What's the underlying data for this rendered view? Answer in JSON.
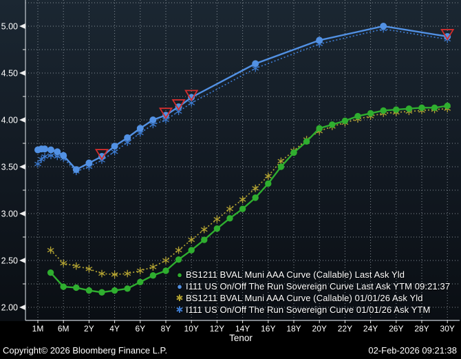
{
  "chart_data": {
    "type": "line",
    "title": "",
    "xlabel": "Tenor",
    "ylabel": "",
    "x_axis": {
      "tick_labels": [
        "1M",
        "6M",
        "2Y",
        "4Y",
        "6Y",
        "8Y",
        "10Y",
        "12Y",
        "14Y",
        "16Y",
        "18Y",
        "20Y",
        "22Y",
        "24Y",
        "26Y",
        "28Y",
        "30Y"
      ]
    },
    "y_axis": {
      "major_tick_labels": [
        "5.00",
        "4.50",
        "4.00",
        "3.50",
        "3.00",
        "2.50",
        "2.00"
      ],
      "major_step": 0.5,
      "minor_step": 0.25,
      "shown_range": [
        1.86,
        5.28
      ]
    },
    "grid": {
      "style": "dotted",
      "horizontal_step": 0.25,
      "vertical": "at each labeled tenor",
      "color": "#9BA4AC"
    },
    "legend_position": "inside-bottom-right",
    "series": [
      {
        "id": "muni-last",
        "z": 3,
        "name": "BS1211 BVAL Muni AAA Curve (Callable) Last Ask Yld",
        "color": "#2FAE2F",
        "line": "solid",
        "marker": "circle",
        "points": [
          [
            "3M",
            0.5,
            2.37
          ],
          [
            "6M",
            1,
            2.22
          ],
          [
            "1Y",
            1.5,
            2.21
          ],
          [
            "2Y",
            2,
            2.18
          ],
          [
            "3Y",
            2.5,
            2.16
          ],
          [
            "4Y",
            3,
            2.18
          ],
          [
            "5Y",
            3.5,
            2.2
          ],
          [
            "6Y",
            4,
            2.27
          ],
          [
            "7Y",
            4.5,
            2.34
          ],
          [
            "8Y",
            5,
            2.39
          ],
          [
            "9Y",
            5.5,
            2.51
          ],
          [
            "10Y",
            6,
            2.61
          ],
          [
            "11Y",
            6.5,
            2.72
          ],
          [
            "12Y",
            7,
            2.84
          ],
          [
            "13Y",
            7.5,
            2.95
          ],
          [
            "14Y",
            8,
            3.05
          ],
          [
            "15Y",
            8.5,
            3.17
          ],
          [
            "16Y",
            9,
            3.32
          ],
          [
            "17Y",
            9.5,
            3.5
          ],
          [
            "18Y",
            10,
            3.65
          ],
          [
            "19Y",
            10.5,
            3.77
          ],
          [
            "20Y",
            11,
            3.91
          ],
          [
            "21Y",
            11.5,
            3.95
          ],
          [
            "22Y",
            12,
            3.99
          ],
          [
            "23Y",
            12.5,
            4.04
          ],
          [
            "24Y",
            13,
            4.07
          ],
          [
            "25Y",
            13.5,
            4.1
          ],
          [
            "26Y",
            14,
            4.11
          ],
          [
            "27Y",
            14.5,
            4.12
          ],
          [
            "28Y",
            15,
            4.13
          ],
          [
            "29Y",
            15.5,
            4.13
          ],
          [
            "30Y",
            16,
            4.15
          ]
        ]
      },
      {
        "id": "sovereign-last",
        "z": 4,
        "name": "I111 US On/Off The Run Sovereign Curve Last Ask YTM 09:21:37",
        "color": "#5291E4",
        "line": "solid",
        "marker": "circle",
        "points": [
          [
            "1M",
            0,
            3.68
          ],
          [
            "2M",
            0.14,
            3.69
          ],
          [
            "3M",
            0.27,
            3.69
          ],
          [
            "4M",
            0.51,
            3.68
          ],
          [
            "5M",
            0.76,
            3.66
          ],
          [
            "6M",
            1,
            3.62
          ],
          [
            "1Y",
            1.5,
            3.47
          ],
          [
            "2Y",
            2,
            3.54
          ],
          [
            "3Y",
            2.5,
            3.61
          ],
          [
            "4Y",
            3,
            3.72
          ],
          [
            "5Y",
            3.5,
            3.81
          ],
          [
            "6Y",
            4,
            3.91
          ],
          [
            "7Y",
            4.5,
            4.0
          ],
          [
            "8Y",
            5,
            4.05
          ],
          [
            "9Y",
            5.5,
            4.14
          ],
          [
            "10Y",
            6,
            4.24
          ],
          [
            "15Y",
            8.5,
            4.6
          ],
          [
            "20Y",
            11,
            4.85
          ],
          [
            "25Y",
            13.5,
            5.0
          ],
          [
            "30Y",
            16,
            4.89
          ]
        ]
      },
      {
        "id": "muni-prior",
        "z": 1,
        "name": "BS1211 BVAL Muni AAA Curve (Callable) 01/01/26 Ask Yld",
        "color": "#B4A433",
        "line": "dotted",
        "marker": "asterisk",
        "points": [
          [
            "3M",
            0.5,
            2.61
          ],
          [
            "6M",
            1,
            2.47
          ],
          [
            "1Y",
            1.5,
            2.44
          ],
          [
            "2Y",
            2,
            2.41
          ],
          [
            "3Y",
            2.5,
            2.36
          ],
          [
            "4Y",
            3,
            2.35
          ],
          [
            "5Y",
            3.5,
            2.36
          ],
          [
            "6Y",
            4,
            2.39
          ],
          [
            "7Y",
            4.5,
            2.43
          ],
          [
            "8Y",
            5,
            2.5
          ],
          [
            "9Y",
            5.5,
            2.61
          ],
          [
            "10Y",
            6,
            2.72
          ],
          [
            "11Y",
            6.5,
            2.83
          ],
          [
            "12Y",
            7,
            2.94
          ],
          [
            "13Y",
            7.5,
            3.05
          ],
          [
            "14Y",
            8,
            3.15
          ],
          [
            "15Y",
            8.5,
            3.27
          ],
          [
            "16Y",
            9,
            3.4
          ],
          [
            "17Y",
            9.5,
            3.56
          ],
          [
            "18Y",
            10,
            3.67
          ],
          [
            "19Y",
            10.5,
            3.79
          ],
          [
            "20Y",
            11,
            3.88
          ],
          [
            "21Y",
            11.5,
            3.93
          ],
          [
            "22Y",
            12,
            3.97
          ],
          [
            "23Y",
            12.5,
            4.01
          ],
          [
            "24Y",
            13,
            4.04
          ],
          [
            "25Y",
            13.5,
            4.07
          ],
          [
            "26Y",
            14,
            4.08
          ],
          [
            "27Y",
            14.5,
            4.09
          ],
          [
            "28Y",
            15,
            4.1
          ],
          [
            "29Y",
            15.5,
            4.11
          ],
          [
            "30Y",
            16,
            4.12
          ]
        ]
      },
      {
        "id": "sovereign-prior",
        "z": 2,
        "name": "I111 US On/Off The Run Sovereign Curve 01/01/26 Ask YTM",
        "color": "#3D7BD0",
        "line": "dotted",
        "marker": "asterisk",
        "points": [
          [
            "1M",
            0,
            3.53
          ],
          [
            "2M",
            0.14,
            3.58
          ],
          [
            "3M",
            0.27,
            3.61
          ],
          [
            "4M",
            0.51,
            3.62
          ],
          [
            "5M",
            0.76,
            3.61
          ],
          [
            "6M",
            1,
            3.59
          ],
          [
            "1Y",
            1.5,
            3.45
          ],
          [
            "2Y",
            2,
            3.5
          ],
          [
            "3Y",
            2.5,
            3.57
          ],
          [
            "4Y",
            3,
            3.66
          ],
          [
            "5Y",
            3.5,
            3.76
          ],
          [
            "6Y",
            4,
            3.86
          ],
          [
            "7Y",
            4.5,
            3.95
          ],
          [
            "8Y",
            5,
            4.0
          ],
          [
            "9Y",
            5.5,
            4.09
          ],
          [
            "10Y",
            6,
            4.18
          ],
          [
            "15Y",
            8.5,
            4.55
          ],
          [
            "20Y",
            11,
            4.81
          ],
          [
            "25Y",
            13.5,
            4.97
          ],
          [
            "30Y",
            16,
            4.86
          ]
        ]
      }
    ],
    "annotations": {
      "red_triangle_markers": {
        "color": "#D22E2E",
        "on_series": "sovereign-last",
        "tenors": [
          "3Y",
          "8Y",
          "9Y",
          "10Y",
          "30Y"
        ]
      }
    }
  },
  "legend": {
    "items": [
      {
        "label": "BS1211 BVAL Muni AAA Curve (Callable) Last Ask Yld",
        "glyph": "●",
        "color": "#2FAE2F"
      },
      {
        "label": "I111 US On/Off The Run Sovereign Curve Last Ask YTM 09:21:37",
        "glyph": "●",
        "color": "#5291E4"
      },
      {
        "label": "BS1211 BVAL Muni AAA Curve (Callable) 01/01/26 Ask Yld",
        "glyph": "✱",
        "color": "#B4A433"
      },
      {
        "label": "I111 US On/Off The Run Sovereign Curve 01/01/26 Ask YTM",
        "glyph": "✱",
        "color": "#3D7BD0"
      }
    ]
  },
  "footer": {
    "copyright": "Copyright© 2026 Bloomberg Finance L.P.",
    "datetime": "02-Feb-2026 09:21:38"
  },
  "colors": {
    "axis": "#C5CBD1",
    "tick_text": "#FFFFFF",
    "grid": "#9BA4AC",
    "background_top": "#1B2732",
    "background_bottom": "#0A0E13"
  }
}
